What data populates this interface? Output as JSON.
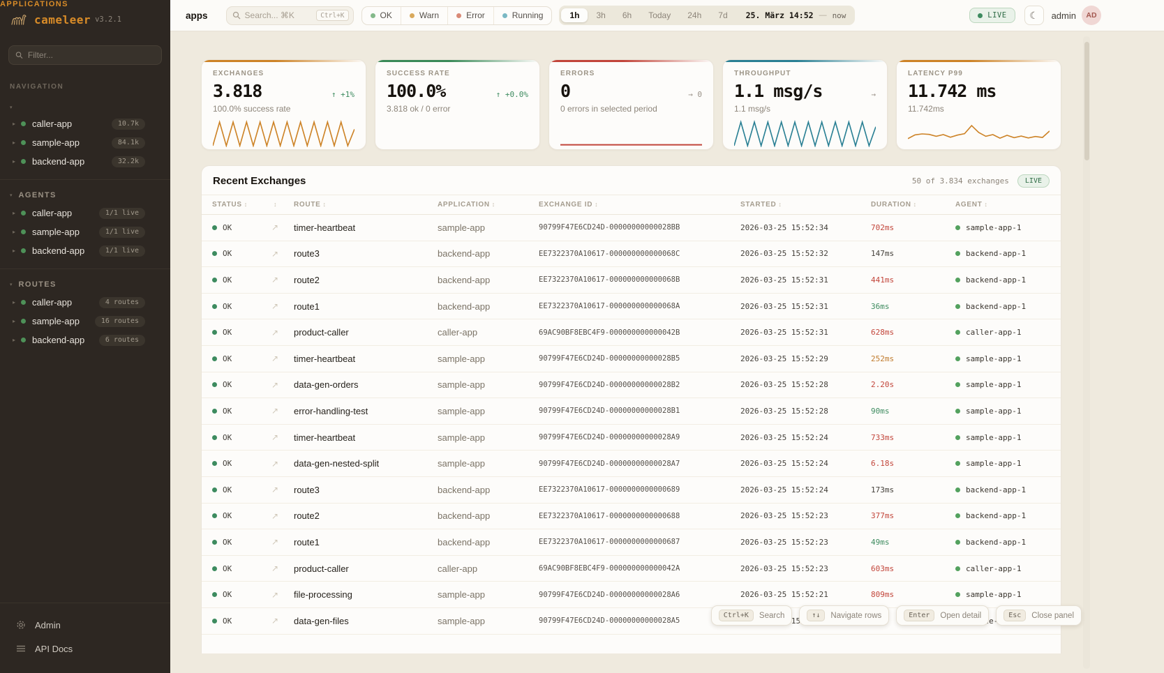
{
  "sidebar": {
    "logo": {
      "name": "cameleer",
      "version": "v3.2.1"
    },
    "filter_placeholder": "Filter...",
    "nav_label": "NAVIGATION",
    "sections": [
      {
        "label": "APPLICATIONS",
        "accent": true,
        "items": [
          {
            "name": "caller-app",
            "badge": "10.7k"
          },
          {
            "name": "sample-app",
            "badge": "84.1k"
          },
          {
            "name": "backend-app",
            "badge": "32.2k"
          }
        ]
      },
      {
        "label": "AGENTS",
        "accent": false,
        "items": [
          {
            "name": "caller-app",
            "badge": "1/1 live"
          },
          {
            "name": "sample-app",
            "badge": "1/1 live"
          },
          {
            "name": "backend-app",
            "badge": "1/1 live"
          }
        ]
      },
      {
        "label": "ROUTES",
        "accent": false,
        "items": [
          {
            "name": "caller-app",
            "badge": "4 routes"
          },
          {
            "name": "sample-app",
            "badge": "16 routes"
          },
          {
            "name": "backend-app",
            "badge": "6 routes"
          }
        ]
      }
    ],
    "footer": [
      {
        "label": "Admin"
      },
      {
        "label": "API Docs"
      }
    ]
  },
  "topbar": {
    "page_title": "apps",
    "search": {
      "placeholder": "Search... ⌘K",
      "kbd": "Ctrl+K"
    },
    "status_filters": [
      {
        "label": "OK",
        "color": "#84b98a"
      },
      {
        "label": "Warn",
        "color": "#d9a95c"
      },
      {
        "label": "Error",
        "color": "#d98a77"
      },
      {
        "label": "Running",
        "color": "#7ab8c4"
      }
    ],
    "time_ranges": [
      "1h",
      "3h",
      "6h",
      "Today",
      "24h",
      "7d"
    ],
    "active_range": "1h",
    "date_label": "25. März 14:52",
    "date_sep": "—",
    "date_now": "now",
    "live_label": "LIVE",
    "user": "admin",
    "avatar": "AD"
  },
  "kpis": [
    {
      "label": "EXCHANGES",
      "value": "3.818",
      "delta": "↑ +1%",
      "delta_color": "green",
      "subtitle": "100.0% success rate",
      "accent": "#cd8327",
      "spark": [
        0,
        10,
        0,
        10,
        0,
        10,
        0,
        10,
        0,
        10,
        0,
        10,
        0,
        10,
        0,
        10,
        0,
        10,
        0,
        10,
        0,
        7
      ]
    },
    {
      "label": "SUCCESS RATE",
      "value": "100.0%",
      "delta": "↑ +0.0%",
      "delta_color": "green",
      "subtitle": "3.818 ok / 0 error",
      "accent": "#3a8a58",
      "spark": []
    },
    {
      "label": "ERRORS",
      "value": "0",
      "delta": "→ 0",
      "delta_color": "gray",
      "subtitle": "0 errors in selected period",
      "accent": "#c2453a",
      "spark": [
        0.4,
        0.4
      ]
    },
    {
      "label": "THROUGHPUT",
      "value": "1.1 msg/s",
      "delta": "→",
      "delta_color": "gray",
      "subtitle": "1.1 msg/s",
      "accent": "#2a8094",
      "spark": [
        0,
        10,
        0,
        10,
        0,
        10,
        0,
        10,
        0,
        10,
        0,
        10,
        0,
        10,
        0,
        10,
        0,
        10,
        0,
        10,
        0,
        8
      ]
    },
    {
      "label": "LATENCY P99",
      "value": "11.742 ms",
      "delta": "",
      "delta_color": "gray",
      "subtitle": "11.742ms",
      "accent": "#cd8327",
      "spark": [
        3,
        4.6,
        5,
        4.8,
        4,
        4.7,
        3.6,
        4.5,
        5.1,
        8.5,
        5.6,
        4,
        4.7,
        3.2,
        4.4,
        3.4,
        4.1,
        3.3,
        3.9,
        3.5,
        6.2
      ]
    }
  ],
  "table": {
    "title": "Recent Exchanges",
    "count_label": "50 of 3.834 exchanges",
    "live_label": "LIVE",
    "columns": [
      "STATUS",
      "",
      "ROUTE",
      "APPLICATION",
      "EXCHANGE ID",
      "STARTED",
      "DURATION",
      "AGENT"
    ],
    "rows": [
      {
        "status": "OK",
        "route": "timer-heartbeat",
        "application": "sample-app",
        "exchange_id": "90799F47E6CD24D-00000000000028BB",
        "started": "2026-03-25 15:52:34",
        "duration": "702ms",
        "duration_color": "red",
        "agent": "sample-app-1"
      },
      {
        "status": "OK",
        "route": "route3",
        "application": "backend-app",
        "exchange_id": "EE7322370A10617-000000000000068C",
        "started": "2026-03-25 15:52:32",
        "duration": "147ms",
        "duration_color": "neutral",
        "agent": "backend-app-1"
      },
      {
        "status": "OK",
        "route": "route2",
        "application": "backend-app",
        "exchange_id": "EE7322370A10617-000000000000068B",
        "started": "2026-03-25 15:52:31",
        "duration": "441ms",
        "duration_color": "red",
        "agent": "backend-app-1"
      },
      {
        "status": "OK",
        "route": "route1",
        "application": "backend-app",
        "exchange_id": "EE7322370A10617-000000000000068A",
        "started": "2026-03-25 15:52:31",
        "duration": "36ms",
        "duration_color": "green",
        "agent": "backend-app-1"
      },
      {
        "status": "OK",
        "route": "product-caller",
        "application": "caller-app",
        "exchange_id": "69AC90BF8EBC4F9-000000000000042B",
        "started": "2026-03-25 15:52:31",
        "duration": "628ms",
        "duration_color": "red",
        "agent": "caller-app-1"
      },
      {
        "status": "OK",
        "route": "timer-heartbeat",
        "application": "sample-app",
        "exchange_id": "90799F47E6CD24D-00000000000028B5",
        "started": "2026-03-25 15:52:29",
        "duration": "252ms",
        "duration_color": "amber",
        "agent": "sample-app-1"
      },
      {
        "status": "OK",
        "route": "data-gen-orders",
        "application": "sample-app",
        "exchange_id": "90799F47E6CD24D-00000000000028B2",
        "started": "2026-03-25 15:52:28",
        "duration": "2.20s",
        "duration_color": "red",
        "agent": "sample-app-1"
      },
      {
        "status": "OK",
        "route": "error-handling-test",
        "application": "sample-app",
        "exchange_id": "90799F47E6CD24D-00000000000028B1",
        "started": "2026-03-25 15:52:28",
        "duration": "90ms",
        "duration_color": "green",
        "agent": "sample-app-1"
      },
      {
        "status": "OK",
        "route": "timer-heartbeat",
        "application": "sample-app",
        "exchange_id": "90799F47E6CD24D-00000000000028A9",
        "started": "2026-03-25 15:52:24",
        "duration": "733ms",
        "duration_color": "red",
        "agent": "sample-app-1"
      },
      {
        "status": "OK",
        "route": "data-gen-nested-split",
        "application": "sample-app",
        "exchange_id": "90799F47E6CD24D-00000000000028A7",
        "started": "2026-03-25 15:52:24",
        "duration": "6.18s",
        "duration_color": "red",
        "agent": "sample-app-1"
      },
      {
        "status": "OK",
        "route": "route3",
        "application": "backend-app",
        "exchange_id": "EE7322370A10617-0000000000000689",
        "started": "2026-03-25 15:52:24",
        "duration": "173ms",
        "duration_color": "neutral",
        "agent": "backend-app-1"
      },
      {
        "status": "OK",
        "route": "route2",
        "application": "backend-app",
        "exchange_id": "EE7322370A10617-0000000000000688",
        "started": "2026-03-25 15:52:23",
        "duration": "377ms",
        "duration_color": "red",
        "agent": "backend-app-1"
      },
      {
        "status": "OK",
        "route": "route1",
        "application": "backend-app",
        "exchange_id": "EE7322370A10617-0000000000000687",
        "started": "2026-03-25 15:52:23",
        "duration": "49ms",
        "duration_color": "green",
        "agent": "backend-app-1"
      },
      {
        "status": "OK",
        "route": "product-caller",
        "application": "caller-app",
        "exchange_id": "69AC90BF8EBC4F9-000000000000042A",
        "started": "2026-03-25 15:52:23",
        "duration": "603ms",
        "duration_color": "red",
        "agent": "caller-app-1"
      },
      {
        "status": "OK",
        "route": "file-processing",
        "application": "sample-app",
        "exchange_id": "90799F47E6CD24D-00000000000028A6",
        "started": "2026-03-25 15:52:21",
        "duration": "809ms",
        "duration_color": "red",
        "agent": "sample-app-1"
      },
      {
        "status": "OK",
        "route": "data-gen-files",
        "application": "sample-app",
        "exchange_id": "90799F47E6CD24D-00000000000028A5",
        "started": "2026-03-25 15:52:21",
        "duration": "",
        "duration_color": "neutral",
        "agent": "sample-app-1"
      }
    ]
  },
  "hints": [
    {
      "key": "Ctrl+K",
      "label": "Search"
    },
    {
      "key": "↑↓",
      "label": "Navigate rows"
    },
    {
      "key": "Enter",
      "label": "Open detail"
    },
    {
      "key": "Esc",
      "label": "Close panel"
    }
  ]
}
